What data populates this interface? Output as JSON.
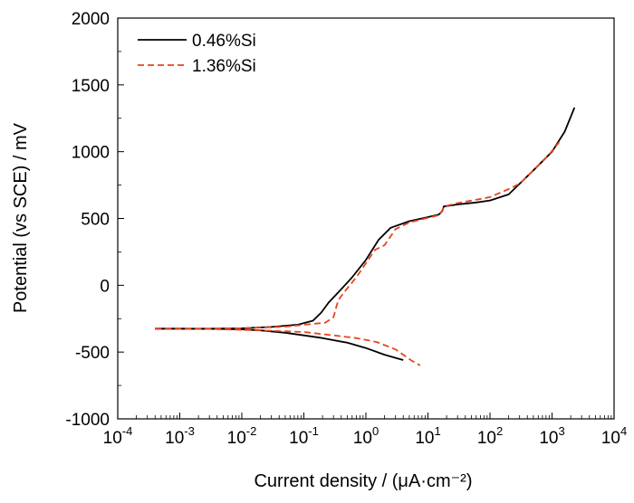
{
  "chart_data": {
    "type": "line",
    "title": "",
    "xlabel": "Current density / (μA·cm⁻²)",
    "ylabel": "Potential (vs SCE) / mV",
    "xscale": "log",
    "xlim": [
      0.0001,
      10000
    ],
    "ylim": [
      -1000,
      2000
    ],
    "x_ticks": [
      {
        "value": 0.0001,
        "base": "10",
        "exp": "-4"
      },
      {
        "value": 0.001,
        "base": "10",
        "exp": "-3"
      },
      {
        "value": 0.01,
        "base": "10",
        "exp": "-2"
      },
      {
        "value": 0.1,
        "base": "10",
        "exp": "-1"
      },
      {
        "value": 1,
        "base": "10",
        "exp": "0"
      },
      {
        "value": 10,
        "base": "10",
        "exp": "1"
      },
      {
        "value": 100,
        "base": "10",
        "exp": "2"
      },
      {
        "value": 1000,
        "base": "10",
        "exp": "3"
      },
      {
        "value": 10000,
        "base": "10",
        "exp": "4"
      }
    ],
    "y_ticks": [
      -1000,
      -500,
      0,
      500,
      1000,
      1500,
      2000
    ],
    "y_tick_labels": [
      "-1000",
      "-500",
      "0",
      "500",
      "1000",
      "1500",
      "2000"
    ],
    "legend_position": "top-left",
    "grid": false,
    "series": [
      {
        "name": "0.46%Si",
        "color": "#000000",
        "style": "solid",
        "cathodic": [
          [
            0.0004,
            -325
          ],
          [
            0.001,
            -325
          ],
          [
            0.004,
            -327
          ],
          [
            0.01,
            -330
          ],
          [
            0.02,
            -338
          ],
          [
            0.05,
            -355
          ],
          [
            0.1,
            -375
          ],
          [
            0.2,
            -395
          ],
          [
            0.5,
            -430
          ],
          [
            1.0,
            -470
          ],
          [
            2.0,
            -520
          ],
          [
            4.0,
            -560
          ]
        ],
        "anodic": [
          [
            0.0004,
            -325
          ],
          [
            0.003,
            -325
          ],
          [
            0.01,
            -322
          ],
          [
            0.03,
            -312
          ],
          [
            0.08,
            -295
          ],
          [
            0.14,
            -265
          ],
          [
            0.19,
            -205
          ],
          [
            0.25,
            -130
          ],
          [
            0.4,
            -30
          ],
          [
            0.6,
            60
          ],
          [
            1.0,
            190
          ],
          [
            1.6,
            340
          ],
          [
            2.5,
            430
          ],
          [
            5,
            480
          ],
          [
            10,
            510
          ],
          [
            15,
            530
          ],
          [
            17,
            555
          ],
          [
            18,
            590
          ],
          [
            30,
            605
          ],
          [
            60,
            620
          ],
          [
            100,
            635
          ],
          [
            200,
            680
          ],
          [
            300,
            760
          ],
          [
            500,
            860
          ],
          [
            1000,
            1000
          ],
          [
            1600,
            1150
          ],
          [
            2300,
            1330
          ]
        ]
      },
      {
        "name": "1.36%Si",
        "color": "#e8431f",
        "style": "dashed",
        "cathodic": [
          [
            0.0004,
            -325
          ],
          [
            0.003,
            -327
          ],
          [
            0.02,
            -338
          ],
          [
            0.1,
            -350
          ],
          [
            0.3,
            -375
          ],
          [
            0.7,
            -395
          ],
          [
            1.5,
            -425
          ],
          [
            3.0,
            -480
          ],
          [
            5.5,
            -565
          ],
          [
            7.5,
            -600
          ]
        ],
        "anodic": [
          [
            0.0004,
            -325
          ],
          [
            0.003,
            -325
          ],
          [
            0.01,
            -322
          ],
          [
            0.05,
            -310
          ],
          [
            0.13,
            -290
          ],
          [
            0.22,
            -280
          ],
          [
            0.3,
            -240
          ],
          [
            0.33,
            -170
          ],
          [
            0.36,
            -110
          ],
          [
            0.45,
            -50
          ],
          [
            0.7,
            60
          ],
          [
            1.0,
            165
          ],
          [
            1.4,
            265
          ],
          [
            2.0,
            300
          ],
          [
            3.0,
            420
          ],
          [
            5,
            470
          ],
          [
            10,
            505
          ],
          [
            15,
            525
          ],
          [
            17,
            560
          ],
          [
            18,
            590
          ],
          [
            30,
            615
          ],
          [
            60,
            640
          ],
          [
            100,
            660
          ],
          [
            200,
            720
          ],
          [
            300,
            760
          ],
          [
            500,
            860
          ],
          [
            900,
            980
          ],
          [
            1300,
            1070
          ]
        ]
      }
    ]
  }
}
